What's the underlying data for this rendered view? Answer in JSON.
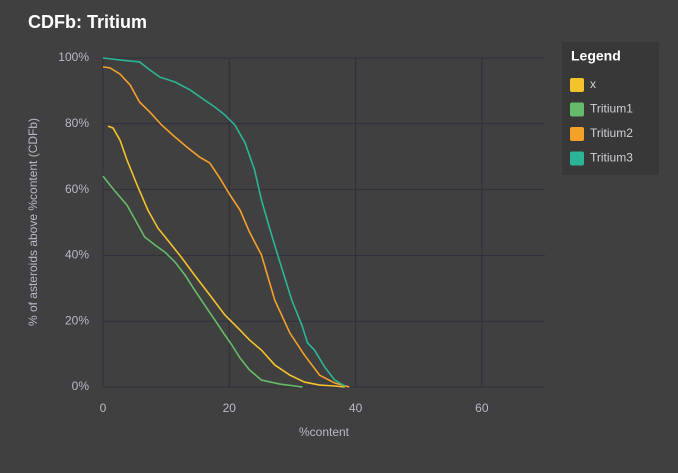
{
  "chart_data": {
    "type": "line",
    "title": "CDFb: Tritium",
    "x_label": "%content",
    "y_label": "% of asteroids above %content (CDFb)",
    "legend_title": "Legend",
    "legend_position": "right",
    "grid": true,
    "xlim": [
      0,
      70
    ],
    "xticks": [
      0,
      20,
      40,
      60
    ],
    "ylim": [
      0,
      100
    ],
    "yticks": [
      {
        "value": 0,
        "label": "0%"
      },
      {
        "value": 20,
        "label": "20%"
      },
      {
        "value": 40,
        "label": "40%"
      },
      {
        "value": 60,
        "label": "60%"
      },
      {
        "value": 80,
        "label": "80%"
      },
      {
        "value": 100,
        "label": "100%"
      }
    ],
    "series": [
      {
        "name": "x",
        "color": "#f4c22b",
        "x": [
          0.8,
          1.6,
          2.7,
          3.8,
          5.4,
          7.1,
          8.7,
          10.6,
          12.5,
          14.5,
          16.9,
          19.3,
          21.7,
          23.2,
          25.1,
          27.2,
          29.6,
          31.9,
          34.3,
          36.7,
          38.3
        ],
        "values": [
          79.3,
          78.7,
          75,
          69,
          61.4,
          53.8,
          48.3,
          43.8,
          39.2,
          34,
          28,
          21.9,
          17.3,
          14.3,
          11.2,
          6.7,
          3.6,
          1.5,
          0.6,
          0.3,
          0
        ]
      },
      {
        "name": "Tritium1",
        "color": "#66bb6a",
        "x": [
          0,
          1.1,
          2.4,
          3.8,
          5.1,
          6.6,
          8.2,
          9.8,
          11.4,
          13,
          14.5,
          16.1,
          17.7,
          19.3,
          20.4,
          21.7,
          23.2,
          25.1,
          28,
          31.6
        ],
        "values": [
          64.1,
          61.4,
          58.4,
          55.3,
          50.8,
          45.6,
          43.2,
          41,
          38,
          34,
          29.5,
          24.9,
          20.4,
          15.8,
          12.8,
          8.8,
          5.2,
          2.1,
          0.9,
          0
        ]
      },
      {
        "name": "Tritium2",
        "color": "#f4a12a",
        "x": [
          0,
          1.1,
          2.7,
          4.3,
          5.8,
          7.4,
          9.3,
          11.4,
          13.3,
          15.3,
          16.9,
          18.5,
          20.1,
          21.7,
          23.2,
          25.1,
          27.2,
          29.6,
          31.9,
          34.3,
          36.7,
          39
        ],
        "values": [
          97.3,
          97,
          95.1,
          91.8,
          86.6,
          83.6,
          79.6,
          76,
          72.9,
          69.9,
          68.1,
          63.5,
          58.4,
          53.8,
          47.1,
          40.1,
          26.4,
          16.4,
          9.7,
          3.6,
          1.2,
          0
        ]
      },
      {
        "name": "Tritium3",
        "color": "#2bb596",
        "x": [
          0,
          2.7,
          5.8,
          7.4,
          9,
          11.4,
          13.8,
          16.1,
          17.7,
          19.3,
          20.9,
          22.5,
          24,
          25.1,
          26.7,
          28.3,
          29.9,
          31.5,
          32.4,
          33.5,
          35.1,
          36.7,
          38.3
        ],
        "values": [
          100,
          99.4,
          98.8,
          96.4,
          94.2,
          92.7,
          90.3,
          87.2,
          85.1,
          82.7,
          79.6,
          74.2,
          66,
          56.8,
          46.2,
          36.2,
          26.4,
          18.8,
          13.4,
          11.2,
          6.1,
          2.1,
          0.3
        ]
      }
    ]
  }
}
